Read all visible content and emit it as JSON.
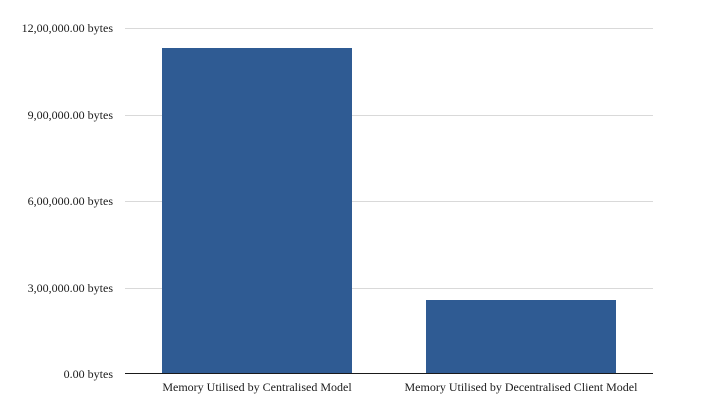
{
  "chart_data": {
    "type": "bar",
    "title": "",
    "categories": [
      "Memory Utilised by Centralised Model",
      "Memory Utilised by Decentralised Client Model"
    ],
    "values": [
      1130000,
      255000
    ],
    "unit": "bytes",
    "xlabel": "",
    "ylabel": "",
    "ylim": [
      0,
      1200000
    ],
    "y_ticks": [
      {
        "value": 0,
        "label": "0.00 bytes"
      },
      {
        "value": 300000,
        "label": "3,00,000.00 bytes"
      },
      {
        "value": 600000,
        "label": "6,00,000.00 bytes"
      },
      {
        "value": 900000,
        "label": "9,00,000.00 bytes"
      },
      {
        "value": 1200000,
        "label": "12,00,000.00 bytes"
      }
    ],
    "grid": true,
    "legend": false,
    "colors": {
      "bar": "#2F5B93",
      "gridline": "#D9D9D9",
      "axis_line": "#1A1A1A",
      "text": "#1A1A1A",
      "background": "#FFFFFF"
    }
  }
}
